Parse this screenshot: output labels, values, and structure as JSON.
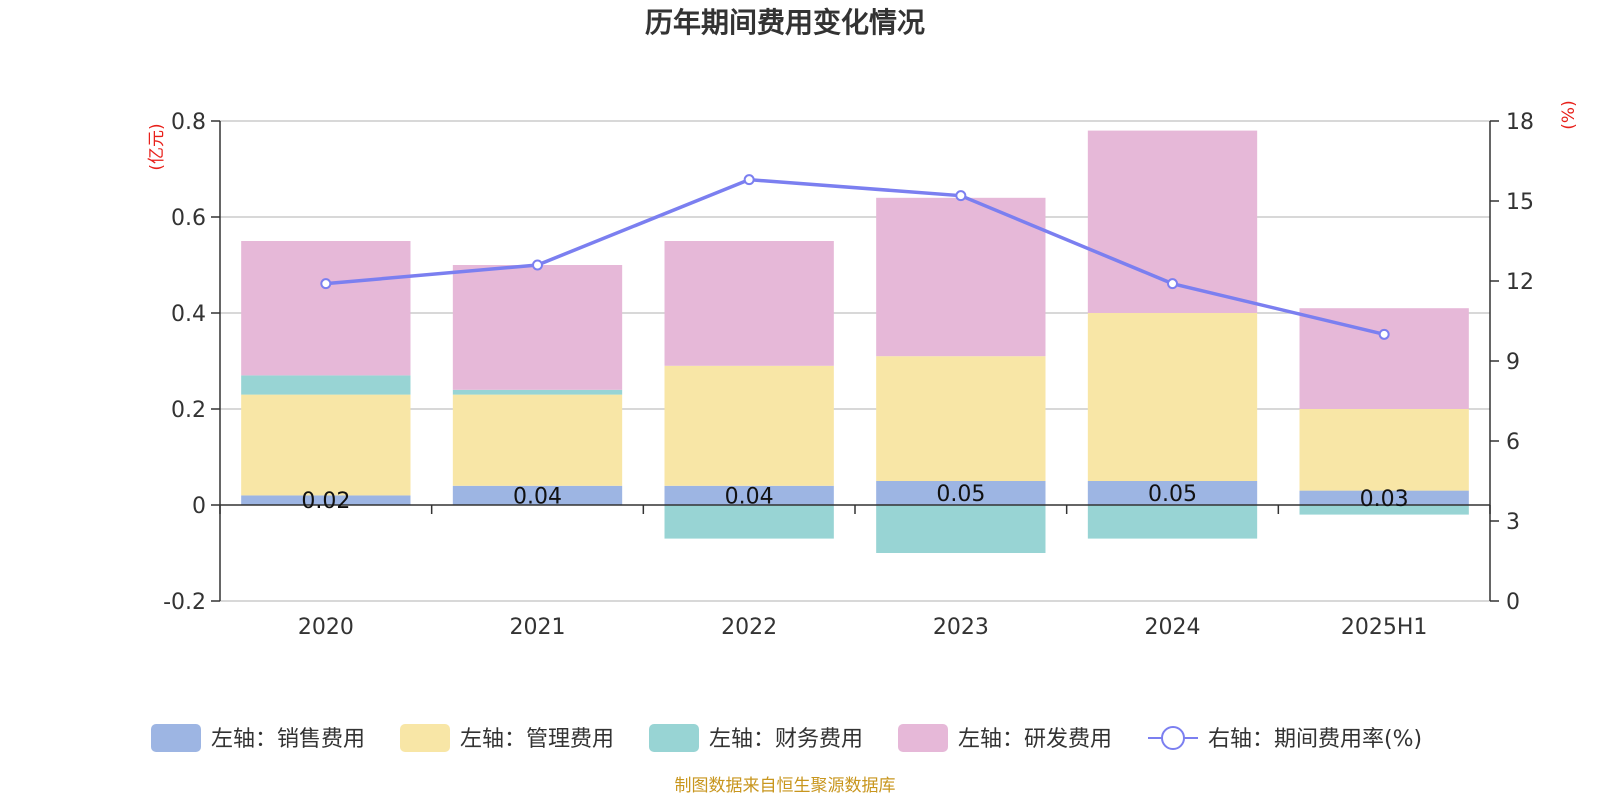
{
  "chart_data": {
    "type": "bar",
    "stacked": true,
    "title": "历年期间费用变化情况",
    "categories": [
      "2020",
      "2021",
      "2022",
      "2023",
      "2024",
      "2025H1"
    ],
    "left_axis": {
      "unit": "(亿元)",
      "ylim": [
        -0.2,
        0.8
      ],
      "ticks": [
        "0.8",
        "0.6",
        "0.4",
        "0.2",
        "0",
        "-0.2"
      ]
    },
    "right_axis": {
      "unit": "(%)",
      "ylim": [
        0,
        18
      ],
      "ticks": [
        "18",
        "15",
        "12",
        "9",
        "6",
        "3",
        "0"
      ]
    },
    "series": [
      {
        "name": "左轴：销售费用",
        "color": "#9db5e3",
        "values": [
          0.02,
          0.04,
          0.04,
          0.05,
          0.05,
          0.03
        ],
        "labels": [
          "0.02",
          "0.04",
          "0.04",
          "0.05",
          "0.05",
          "0.03"
        ]
      },
      {
        "name": "左轴：管理费用",
        "color": "#f8e6a6",
        "values": [
          0.21,
          0.19,
          0.25,
          0.26,
          0.35,
          0.17
        ]
      },
      {
        "name": "左轴：财务费用",
        "color": "#98d4d4",
        "values": [
          0.04,
          0.01,
          -0.07,
          -0.1,
          -0.07,
          -0.02
        ]
      },
      {
        "name": "左轴：研发费用",
        "color": "#e6b8d8",
        "values": [
          0.28,
          0.26,
          0.26,
          0.33,
          0.38,
          0.21
        ]
      }
    ],
    "line_series": {
      "name": "右轴：期间费用率(%)",
      "color": "#7b7ff0",
      "values": [
        11.9,
        12.6,
        15.8,
        15.2,
        11.9,
        10.0
      ]
    },
    "grid": true,
    "legend_position": "bottom"
  },
  "source": "制图数据来自恒生聚源数据库"
}
